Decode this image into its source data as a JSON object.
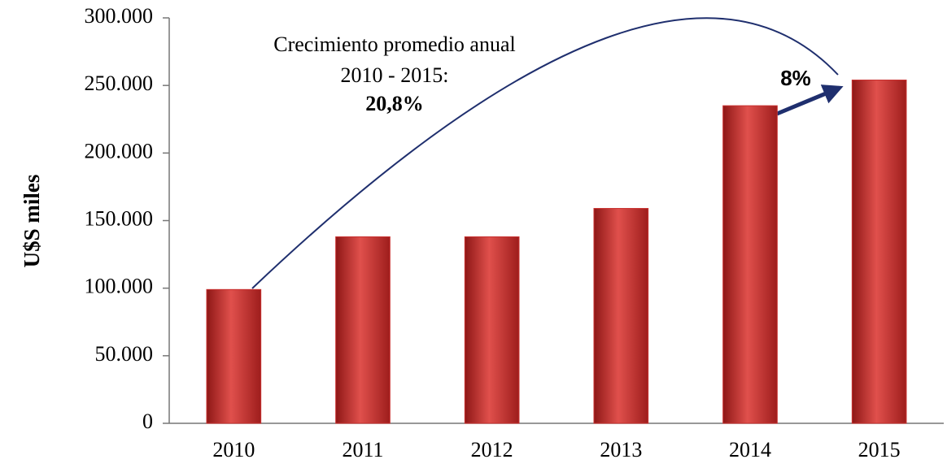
{
  "chart_data": {
    "type": "bar",
    "y_label": "U$S miles",
    "categories": [
      "2010",
      "2011",
      "2012",
      "2013",
      "2014",
      "2015"
    ],
    "values": [
      99000,
      138000,
      138000,
      159000,
      235000,
      254000
    ],
    "color": "#c8302f",
    "ylim": [
      0,
      300000
    ],
    "yticks": [
      0,
      {
        "value": 50000,
        "label": "50.000"
      },
      {
        "value": 100000,
        "label": "100.000"
      },
      {
        "value": 150000,
        "label": "150.000"
      },
      {
        "value": 200000,
        "label": "200.000"
      },
      {
        "value": 250000,
        "label": "250.000"
      },
      {
        "value": 300000,
        "label": "300.000"
      }
    ],
    "grid": false,
    "annotations": [
      "Crecimiento promedio anual",
      "2010 - 2015:",
      "20,8%",
      "8%"
    ]
  }
}
